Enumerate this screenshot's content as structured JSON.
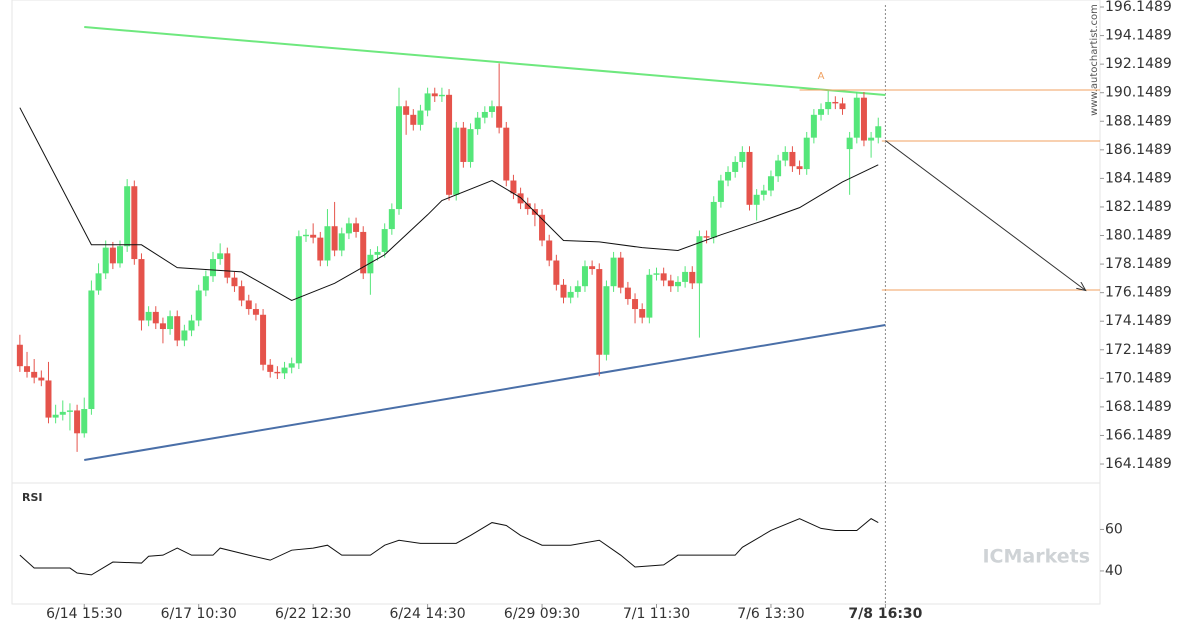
{
  "chart_data": {
    "type": "candlestick",
    "xlim": [
      -1.1,
      151
    ],
    "xticks": [
      {
        "value": 9,
        "label": "6/14 15:30"
      },
      {
        "value": 25,
        "label": "6/17 10:30"
      },
      {
        "value": 41,
        "label": "6/22 12:30"
      },
      {
        "value": 57,
        "label": "6/24 14:30"
      },
      {
        "value": 73,
        "label": "6/29 09:30"
      },
      {
        "value": 89,
        "label": "7/1 11:30"
      },
      {
        "value": 105,
        "label": "7/6 13:30"
      },
      {
        "value": 121,
        "label": "7/8 16:30"
      }
    ],
    "ylim": [
      163.03,
      196.64
    ],
    "yticks": [
      164.1489,
      166.1489,
      168.1489,
      170.1489,
      172.1489,
      174.1489,
      176.1489,
      178.1489,
      180.1489,
      182.1489,
      184.1489,
      186.1489,
      188.1489,
      190.1489,
      192.1489,
      194.1489,
      196.1489
    ],
    "up_color": "#55e67a",
    "down_color": "#e5534b",
    "candles": [
      [
        172.5,
        173.2,
        170.6,
        171.0
      ],
      [
        171.0,
        172.0,
        170.2,
        170.6
      ],
      [
        170.6,
        171.5,
        169.8,
        170.2
      ],
      [
        170.2,
        170.7,
        169.6,
        170.0
      ],
      [
        170.0,
        171.3,
        167.0,
        167.4
      ],
      [
        167.4,
        168.3,
        167.0,
        167.6
      ],
      [
        167.6,
        168.6,
        167.2,
        167.8
      ],
      [
        167.8,
        168.4,
        166.5,
        167.9
      ],
      [
        167.9,
        168.3,
        165.0,
        166.3
      ],
      [
        166.3,
        168.8,
        166.0,
        168.0
      ],
      [
        168.0,
        177.0,
        167.6,
        176.3
      ],
      [
        176.3,
        178.2,
        176.0,
        177.5
      ],
      [
        177.5,
        179.8,
        177.1,
        179.3
      ],
      [
        179.3,
        179.7,
        177.8,
        178.2
      ],
      [
        178.2,
        179.8,
        177.9,
        179.4
      ],
      [
        179.4,
        184.1,
        179.0,
        183.6
      ],
      [
        183.6,
        184.0,
        178.1,
        178.5
      ],
      [
        178.5,
        178.9,
        173.5,
        174.2
      ],
      [
        174.2,
        175.2,
        173.8,
        174.8
      ],
      [
        174.8,
        175.2,
        173.6,
        174.0
      ],
      [
        174.0,
        174.4,
        172.6,
        173.6
      ],
      [
        173.6,
        174.9,
        173.2,
        174.5
      ],
      [
        174.5,
        174.9,
        172.4,
        172.8
      ],
      [
        172.8,
        173.9,
        172.4,
        173.5
      ],
      [
        173.5,
        174.6,
        173.1,
        174.2
      ],
      [
        174.2,
        176.7,
        173.8,
        176.3
      ],
      [
        176.3,
        177.7,
        175.9,
        177.3
      ],
      [
        177.3,
        179.0,
        176.9,
        178.5
      ],
      [
        178.5,
        179.6,
        178.1,
        178.9
      ],
      [
        178.9,
        179.3,
        176.8,
        177.2
      ],
      [
        177.2,
        177.6,
        176.2,
        176.6
      ],
      [
        176.6,
        177.0,
        175.2,
        175.6
      ],
      [
        175.6,
        176.0,
        174.6,
        175.0
      ],
      [
        175.0,
        175.4,
        174.2,
        174.6
      ],
      [
        174.6,
        175.0,
        170.7,
        171.1
      ],
      [
        171.1,
        171.5,
        170.2,
        170.6
      ],
      [
        170.6,
        171.0,
        170.1,
        170.5
      ],
      [
        170.5,
        171.3,
        170.1,
        170.9
      ],
      [
        170.9,
        171.6,
        170.5,
        171.2
      ],
      [
        171.2,
        180.5,
        170.8,
        180.1
      ],
      [
        180.1,
        180.6,
        179.7,
        180.2
      ],
      [
        180.2,
        181.0,
        179.6,
        180.0
      ],
      [
        180.0,
        180.4,
        178.0,
        178.4
      ],
      [
        178.4,
        182.0,
        178.0,
        180.8
      ],
      [
        180.8,
        182.5,
        178.7,
        179.1
      ],
      [
        179.1,
        180.7,
        178.7,
        180.3
      ],
      [
        180.3,
        181.4,
        179.9,
        181.0
      ],
      [
        181.0,
        181.4,
        180.0,
        180.4
      ],
      [
        180.4,
        180.8,
        177.1,
        177.5
      ],
      [
        177.5,
        179.2,
        176.0,
        178.8
      ],
      [
        178.8,
        179.4,
        178.4,
        179.0
      ],
      [
        179.0,
        181.0,
        178.6,
        180.6
      ],
      [
        180.6,
        182.4,
        180.2,
        182.0
      ],
      [
        182.0,
        190.5,
        181.6,
        189.2
      ],
      [
        189.2,
        189.6,
        187.2,
        188.6
      ],
      [
        188.6,
        189.0,
        187.5,
        187.9
      ],
      [
        187.9,
        189.3,
        187.5,
        188.9
      ],
      [
        188.9,
        190.5,
        188.5,
        190.1
      ],
      [
        190.1,
        190.5,
        189.5,
        189.9
      ],
      [
        189.9,
        190.5,
        189.5,
        190.0
      ],
      [
        190.0,
        190.4,
        182.6,
        183.0
      ],
      [
        183.0,
        188.1,
        182.6,
        187.7
      ],
      [
        187.7,
        188.1,
        184.9,
        185.3
      ],
      [
        185.3,
        188.0,
        184.9,
        187.6
      ],
      [
        187.6,
        188.8,
        187.2,
        188.4
      ],
      [
        188.4,
        189.2,
        188.0,
        188.8
      ],
      [
        188.8,
        189.6,
        188.4,
        189.2
      ],
      [
        189.2,
        192.2,
        187.3,
        187.7
      ],
      [
        187.7,
        188.1,
        183.6,
        184.0
      ],
      [
        184.0,
        184.4,
        182.7,
        183.1
      ],
      [
        183.1,
        183.5,
        182.0,
        182.4
      ],
      [
        182.4,
        182.8,
        181.6,
        182.0
      ],
      [
        182.0,
        182.4,
        180.8,
        181.6
      ],
      [
        181.6,
        182.0,
        179.4,
        179.8
      ],
      [
        179.8,
        180.2,
        178.0,
        178.4
      ],
      [
        178.4,
        178.8,
        176.3,
        176.7
      ],
      [
        176.7,
        177.1,
        175.4,
        175.8
      ],
      [
        175.8,
        176.6,
        175.4,
        176.2
      ],
      [
        176.2,
        177.0,
        175.8,
        176.6
      ],
      [
        176.6,
        178.4,
        176.2,
        178.0
      ],
      [
        178.0,
        178.4,
        177.4,
        177.8
      ],
      [
        177.8,
        178.2,
        170.3,
        171.8
      ],
      [
        171.8,
        177.0,
        171.4,
        176.6
      ],
      [
        176.6,
        179.0,
        176.2,
        178.6
      ],
      [
        178.6,
        179.0,
        176.1,
        176.5
      ],
      [
        176.5,
        176.9,
        175.3,
        175.7
      ],
      [
        175.7,
        176.1,
        174.0,
        175.0
      ],
      [
        175.0,
        175.4,
        174.0,
        174.4
      ],
      [
        174.4,
        177.8,
        174.0,
        177.4
      ],
      [
        177.4,
        177.9,
        177.0,
        177.5
      ],
      [
        177.5,
        177.9,
        176.6,
        177.0
      ],
      [
        177.0,
        177.4,
        176.2,
        176.6
      ],
      [
        176.6,
        177.3,
        176.2,
        176.9
      ],
      [
        176.9,
        178.0,
        176.5,
        177.6
      ],
      [
        177.6,
        178.0,
        176.4,
        176.8
      ],
      [
        176.8,
        180.5,
        173.0,
        180.1
      ],
      [
        180.1,
        180.5,
        179.6,
        180.0
      ],
      [
        180.0,
        182.9,
        179.6,
        182.5
      ],
      [
        182.5,
        184.4,
        182.1,
        184.0
      ],
      [
        184.0,
        185.0,
        183.6,
        184.6
      ],
      [
        184.6,
        185.7,
        184.2,
        185.3
      ],
      [
        185.3,
        186.4,
        184.9,
        186.0
      ],
      [
        186.0,
        186.4,
        181.9,
        182.3
      ],
      [
        182.3,
        183.4,
        181.2,
        183.0
      ],
      [
        183.0,
        183.7,
        182.6,
        183.3
      ],
      [
        183.3,
        184.7,
        182.9,
        184.3
      ],
      [
        184.3,
        185.8,
        183.9,
        185.4
      ],
      [
        185.4,
        186.4,
        185.0,
        186.0
      ],
      [
        186.0,
        186.4,
        184.6,
        185.0
      ],
      [
        185.0,
        185.4,
        184.4,
        184.8
      ],
      [
        184.8,
        187.4,
        184.4,
        187.0
      ],
      [
        187.0,
        189.0,
        186.6,
        188.6
      ],
      [
        188.6,
        189.4,
        188.2,
        189.0
      ],
      [
        189.0,
        190.3,
        188.6,
        189.5
      ],
      [
        189.5,
        189.9,
        189.0,
        189.4
      ],
      [
        189.4,
        189.8,
        188.6,
        189.0
      ],
      [
        186.2,
        187.4,
        183.0,
        187.0
      ],
      [
        187.0,
        190.2,
        186.6,
        189.8
      ],
      [
        189.8,
        190.2,
        186.4,
        186.8
      ],
      [
        186.8,
        187.4,
        185.6,
        187.0
      ],
      [
        187.0,
        188.4,
        186.6,
        187.8
      ]
    ],
    "ma": {
      "color": "#111111",
      "x": [
        0,
        10,
        17,
        22,
        31,
        38,
        44,
        51,
        57,
        59,
        66,
        70,
        76,
        81,
        87,
        92,
        98,
        104,
        109,
        115,
        120
      ],
      "values": [
        189.1,
        179.5,
        179.5,
        177.9,
        177.6,
        175.6,
        176.8,
        178.8,
        181.6,
        182.6,
        184.0,
        182.8,
        179.8,
        179.7,
        179.3,
        179.1,
        180.2,
        181.2,
        182.1,
        183.9,
        185.1
      ]
    },
    "trendlines": [
      {
        "color": "#6ee87e",
        "x": [
          9,
          121
        ],
        "values": [
          194.75,
          189.99
        ]
      },
      {
        "color": "#4a6fa8",
        "x": [
          9,
          121
        ],
        "values": [
          164.43,
          173.88
        ]
      }
    ],
    "levels": [
      {
        "value": 190.34,
        "from": 109
      },
      {
        "value": 186.77,
        "from": 120.5
      },
      {
        "value": 176.33,
        "from": 120.5
      }
    ],
    "level_color": "#f0a060",
    "projection": {
      "x": [
        121,
        149
      ],
      "values": [
        186.8,
        176.3
      ]
    },
    "annotation": {
      "text": "A",
      "x": 112,
      "value": 190.9
    },
    "rsi": {
      "label": "RSI",
      "color": "#111111",
      "ylim": [
        26,
        79
      ],
      "yticks": [
        40,
        60
      ],
      "x": [
        0,
        2,
        7,
        8,
        10,
        13,
        17,
        18,
        20,
        22,
        24,
        27,
        28,
        32,
        35,
        38,
        41,
        43,
        45,
        49,
        51,
        53,
        56,
        61,
        63,
        66,
        68,
        70,
        73,
        77,
        81,
        84,
        86,
        90,
        92,
        95,
        100,
        101,
        105,
        109,
        112,
        114,
        117,
        119,
        120
      ],
      "values": [
        47.6,
        41.4,
        41.4,
        39.0,
        38.1,
        44.3,
        43.8,
        47.1,
        47.6,
        51.0,
        47.6,
        47.6,
        51.0,
        47.6,
        45.2,
        50.0,
        51.0,
        52.4,
        47.6,
        47.6,
        52.4,
        54.8,
        53.3,
        53.3,
        57.1,
        63.3,
        61.9,
        57.1,
        52.4,
        52.4,
        54.8,
        47.6,
        41.9,
        42.9,
        47.6,
        47.6,
        47.6,
        51.4,
        59.5,
        65.2,
        60.5,
        59.5,
        59.5,
        65.2,
        63.3
      ]
    },
    "watermark": "www.autochartist.com",
    "logo": "ICMarkets"
  }
}
